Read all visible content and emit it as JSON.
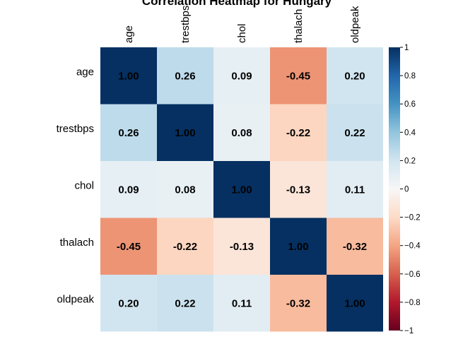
{
  "chart_data": {
    "type": "heatmap",
    "title": "Correlation Heatmap for Hungary",
    "variables": [
      "age",
      "trestbps",
      "chol",
      "thalach",
      "oldpeak"
    ],
    "matrix": [
      [
        1.0,
        0.26,
        0.09,
        -0.45,
        0.2
      ],
      [
        0.26,
        1.0,
        0.08,
        -0.22,
        0.22
      ],
      [
        0.09,
        0.08,
        1.0,
        -0.13,
        0.11
      ],
      [
        -0.45,
        -0.22,
        -0.13,
        1.0,
        -0.32
      ],
      [
        0.2,
        0.22,
        0.11,
        -0.32,
        1.0
      ]
    ],
    "value_labels": [
      [
        "1.00",
        "0.26",
        "0.09",
        "-0.45",
        "0.20"
      ],
      [
        "0.26",
        "1.00",
        "0.08",
        "-0.22",
        "0.22"
      ],
      [
        "0.09",
        "0.08",
        "1.00",
        "-0.13",
        "0.11"
      ],
      [
        "-0.45",
        "-0.22",
        "-0.13",
        "1.00",
        "-0.32"
      ],
      [
        "0.20",
        "0.22",
        "0.11",
        "-0.32",
        "1.00"
      ]
    ],
    "colorbar": {
      "range": [
        -1,
        1
      ],
      "ticks": [
        1,
        0.8,
        0.6,
        0.4,
        0.2,
        0,
        -0.2,
        -0.4,
        -0.6,
        -0.8,
        -1
      ],
      "tick_labels": [
        "1",
        "0.8",
        "0.6",
        "0.4",
        "0.2",
        "0",
        "−0.2",
        "−0.4",
        "−0.6",
        "−0.8",
        "−1"
      ],
      "placement": "right"
    },
    "colors": {
      "neg1": "#67001f",
      "neg06": "#d6604d",
      "zero": "#f7f7f7",
      "pos06": "#4393c3",
      "pos1": "#053061"
    }
  }
}
